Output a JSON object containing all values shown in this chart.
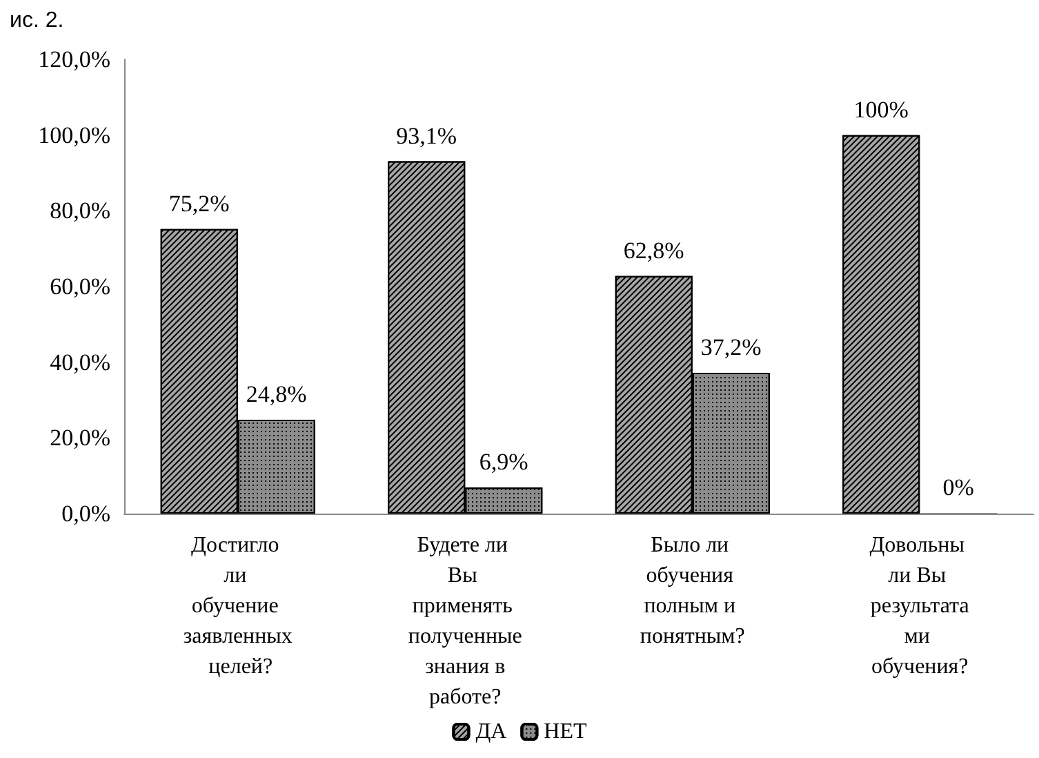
{
  "chart_data": {
    "type": "bar",
    "categories": [
      "Достигло ли обучение заявленных целей?",
      "Будете ли Вы применять полученные знания в работе?",
      "Было ли обучения полным и понятным?",
      "Довольны ли Вы результатами обучения?"
    ],
    "series": [
      {
        "name": "ДА",
        "color": "#a6a6a6",
        "values": [
          75.2,
          93.1,
          62.8,
          100
        ],
        "value_labels": [
          "75,2%",
          "93,1%",
          "62,8%",
          "100%"
        ]
      },
      {
        "name": "НЕТ",
        "color": "#8c8c8c",
        "values": [
          24.8,
          6.9,
          37.2,
          0
        ],
        "value_labels": [
          "24,8%",
          "6,9%",
          "37,2%",
          "0%"
        ]
      }
    ],
    "ylim": [
      0,
      120
    ],
    "yticks": [
      {
        "value": 0,
        "label": "0,0%"
      },
      {
        "value": 20,
        "label": "20,0%"
      },
      {
        "value": 40,
        "label": "40,0%"
      },
      {
        "value": 60,
        "label": "60,0%"
      },
      {
        "value": 80,
        "label": "80,0%"
      },
      {
        "value": 100,
        "label": "100,0%"
      },
      {
        "value": 120,
        "label": "120,0%"
      }
    ],
    "grid": false,
    "legend": "bottom",
    "annotations": [
      "ис. 2."
    ]
  }
}
